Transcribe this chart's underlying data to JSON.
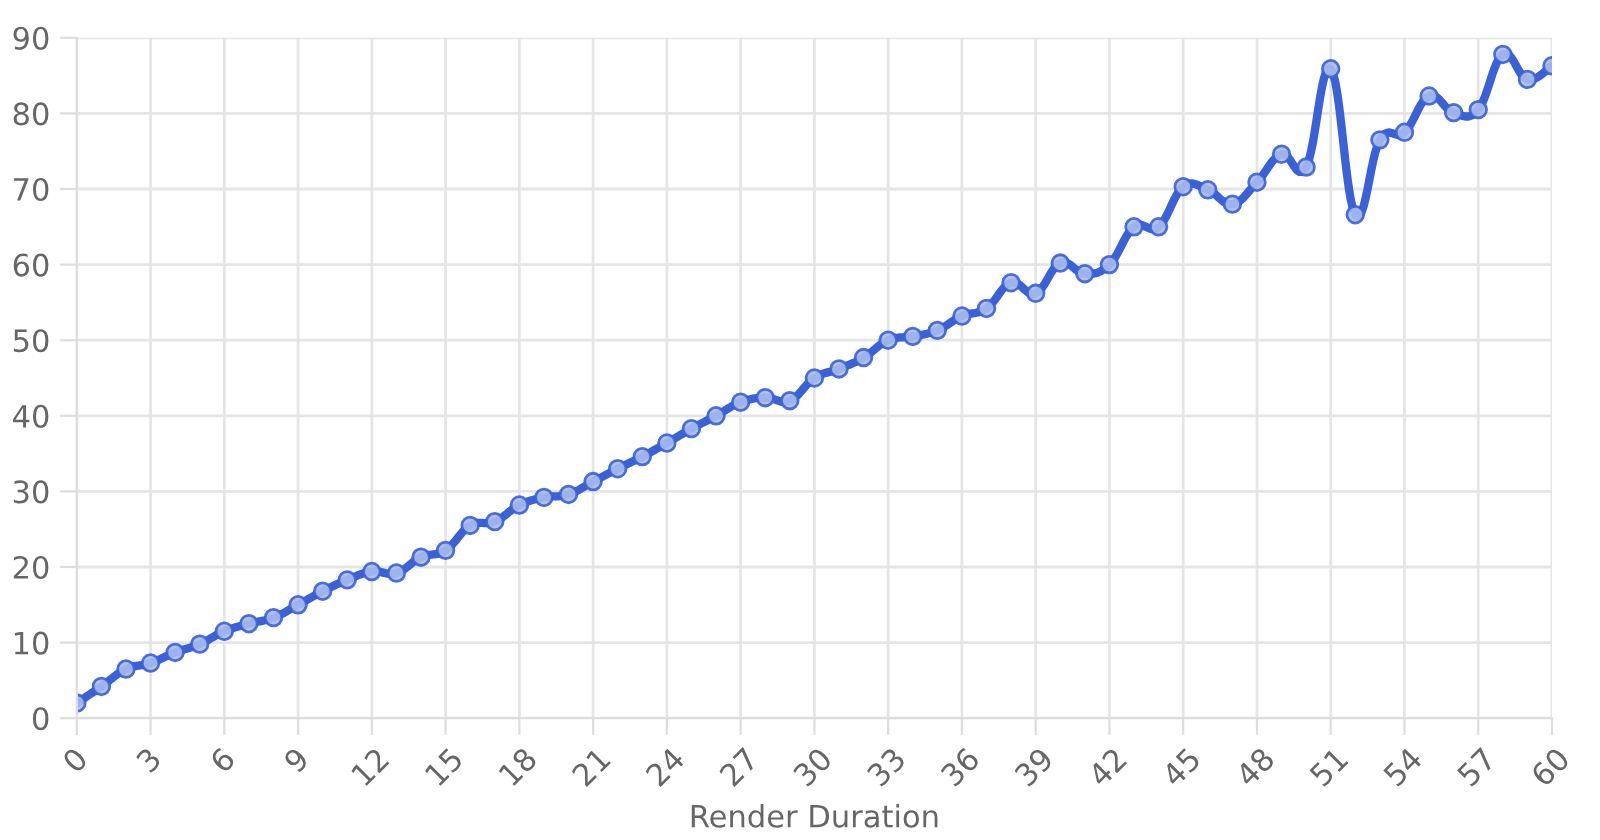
{
  "chart_data": {
    "type": "line",
    "xlabel": "Render Duration",
    "x": [
      0,
      1,
      2,
      3,
      4,
      5,
      6,
      7,
      8,
      9,
      10,
      11,
      12,
      13,
      14,
      15,
      16,
      17,
      18,
      19,
      20,
      21,
      22,
      23,
      24,
      25,
      26,
      27,
      28,
      29,
      30,
      31,
      32,
      33,
      34,
      35,
      36,
      37,
      38,
      39,
      40,
      41,
      42,
      43,
      44,
      45,
      46,
      47,
      48,
      49,
      50,
      51,
      52,
      53,
      54,
      55,
      56,
      57,
      58,
      59,
      60
    ],
    "series": [
      {
        "color": "#3a62d6",
        "values": [
          2,
          4.2,
          6.5,
          7.3,
          8.7,
          9.8,
          11.5,
          12.5,
          13.3,
          15,
          16.8,
          18.3,
          19.4,
          19.2,
          21.3,
          22.2,
          25.5,
          26,
          28.2,
          29.2,
          29.6,
          31.3,
          33,
          34.6,
          36.4,
          38.3,
          40,
          41.8,
          42.4,
          42,
          45,
          46.2,
          47.7,
          50,
          50.5,
          51.3,
          53.2,
          54.2,
          57.6,
          56.2,
          60.2,
          58.8,
          60,
          65,
          65,
          70.3,
          69.9,
          68,
          70.9,
          74.6,
          72.9,
          85.9,
          66.6,
          76.5,
          77.5,
          82.3,
          80.1,
          80.5,
          87.8,
          84.5,
          86.3
        ]
      }
    ],
    "xlim": [
      0,
      60
    ],
    "xticks": [
      0,
      3,
      6,
      9,
      12,
      15,
      18,
      21,
      24,
      27,
      30,
      33,
      36,
      39,
      42,
      45,
      48,
      51,
      54,
      57,
      60
    ],
    "ylim": [
      0,
      90
    ],
    "yticks": [
      0,
      10,
      20,
      30,
      40,
      50,
      60,
      70,
      80,
      90
    ],
    "grid": true,
    "marker": "circle",
    "line_style": "solid",
    "legend": false
  }
}
